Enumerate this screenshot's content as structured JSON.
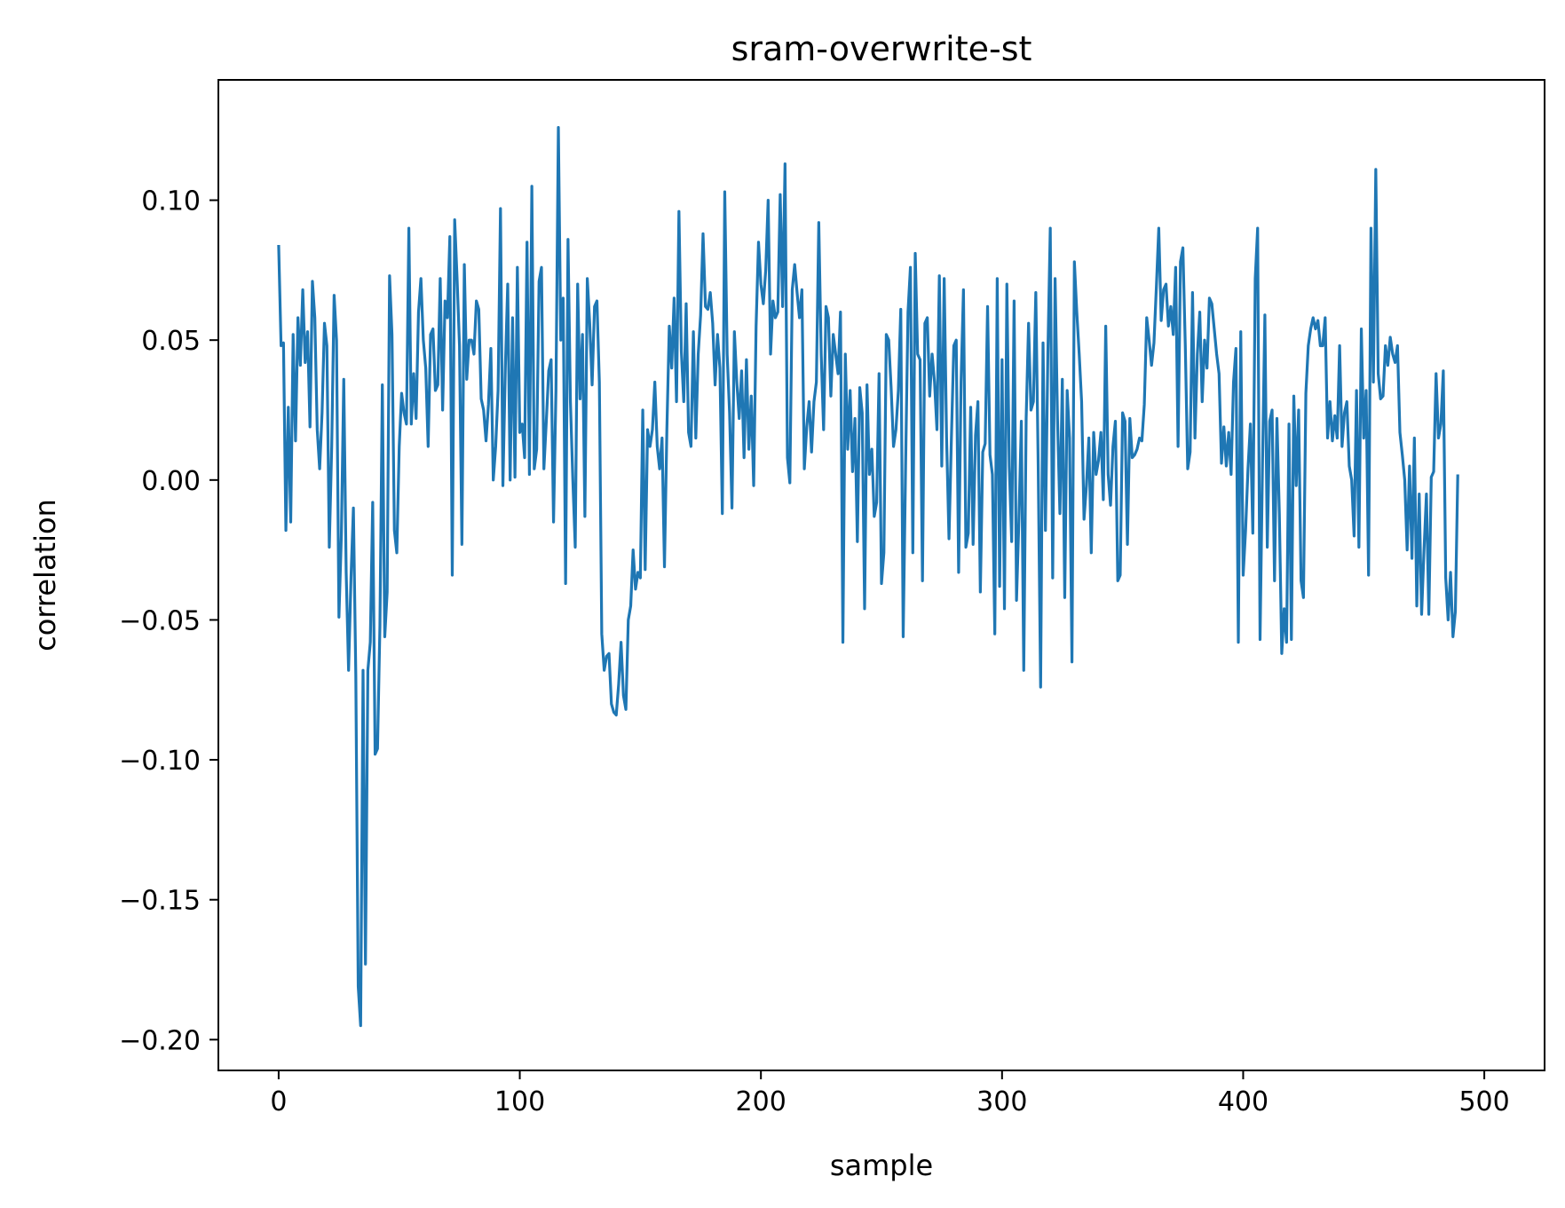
{
  "chart_data": {
    "type": "line",
    "title": "sram-overwrite-st",
    "xlabel": "sample",
    "ylabel": "correlation",
    "xlim": [
      -25,
      525
    ],
    "ylim": [
      -0.211,
      0.143
    ],
    "x_ticks": [
      0,
      100,
      200,
      300,
      400,
      500
    ],
    "x_tick_labels": [
      "0",
      "100",
      "200",
      "300",
      "400",
      "500"
    ],
    "y_ticks": [
      0.1,
      0.05,
      0.0,
      -0.05,
      -0.1,
      -0.15,
      -0.2
    ],
    "y_tick_labels": [
      "0.10",
      "0.05",
      "0.00",
      "−0.05",
      "−0.10",
      "−0.15",
      "−0.20"
    ],
    "grid": false,
    "legend": "none",
    "colors": {
      "line": "#1f77b4",
      "axes": "#000000",
      "background": "#ffffff"
    },
    "series": [
      {
        "x_start": 0,
        "x_step": 1,
        "values": [
          0.084,
          0.048,
          0.049,
          -0.018,
          0.026,
          -0.015,
          0.052,
          0.014,
          0.058,
          0.041,
          0.068,
          0.042,
          0.053,
          0.019,
          0.071,
          0.058,
          0.018,
          0.004,
          0.024,
          0.056,
          0.048,
          -0.024,
          0.012,
          0.066,
          0.05,
          -0.049,
          -0.02,
          0.036,
          -0.033,
          -0.068,
          -0.035,
          -0.01,
          -0.07,
          -0.181,
          -0.195,
          -0.068,
          -0.173,
          -0.068,
          -0.058,
          -0.008,
          -0.098,
          -0.096,
          -0.052,
          0.034,
          -0.056,
          -0.04,
          0.073,
          0.052,
          -0.018,
          -0.026,
          0.012,
          0.031,
          0.024,
          0.02,
          0.09,
          0.02,
          0.038,
          0.022,
          0.06,
          0.072,
          0.05,
          0.04,
          0.012,
          0.052,
          0.054,
          0.032,
          0.034,
          0.072,
          0.025,
          0.064,
          0.058,
          0.087,
          -0.034,
          0.093,
          0.072,
          0.048,
          -0.023,
          0.077,
          0.036,
          0.05,
          0.05,
          0.045,
          0.064,
          0.061,
          0.029,
          0.025,
          0.014,
          0.027,
          0.047,
          0.0,
          0.012,
          0.032,
          0.097,
          -0.002,
          0.04,
          0.07,
          0.0,
          0.058,
          0.001,
          0.076,
          0.017,
          0.02,
          0.008,
          0.085,
          0.002,
          0.105,
          0.004,
          0.011,
          0.071,
          0.076,
          0.004,
          0.021,
          0.039,
          0.043,
          -0.015,
          0.032,
          0.126,
          0.05,
          0.065,
          -0.037,
          0.086,
          0.028,
          0.0,
          -0.024,
          0.07,
          0.029,
          0.052,
          -0.013,
          0.072,
          0.056,
          0.034,
          0.062,
          0.064,
          0.035,
          -0.055,
          -0.068,
          -0.063,
          -0.062,
          -0.08,
          -0.083,
          -0.084,
          -0.073,
          -0.058,
          -0.077,
          -0.082,
          -0.05,
          -0.045,
          -0.025,
          -0.039,
          -0.033,
          -0.035,
          0.025,
          -0.032,
          0.018,
          0.012,
          0.018,
          0.035,
          0.012,
          0.004,
          0.015,
          -0.031,
          0.018,
          0.055,
          0.04,
          0.065,
          0.028,
          0.096,
          0.046,
          0.028,
          0.063,
          0.017,
          0.012,
          0.053,
          0.015,
          0.045,
          0.059,
          0.088,
          0.062,
          0.061,
          0.067,
          0.056,
          0.034,
          0.052,
          0.04,
          -0.012,
          0.103,
          0.045,
          0.024,
          -0.01,
          0.053,
          0.035,
          0.022,
          0.039,
          0.008,
          0.043,
          0.011,
          0.03,
          -0.002,
          0.055,
          0.085,
          0.07,
          0.063,
          0.075,
          0.1,
          0.045,
          0.064,
          0.058,
          0.06,
          0.102,
          0.062,
          0.113,
          0.008,
          -0.001,
          0.068,
          0.077,
          0.067,
          0.058,
          0.068,
          0.004,
          0.019,
          0.028,
          0.01,
          0.028,
          0.035,
          0.092,
          0.045,
          0.018,
          0.062,
          0.058,
          0.03,
          0.052,
          0.045,
          0.038,
          0.06,
          -0.058,
          0.045,
          0.011,
          0.032,
          0.003,
          0.022,
          -0.022,
          0.033,
          0.024,
          -0.046,
          0.034,
          0.002,
          0.011,
          -0.013,
          -0.008,
          0.038,
          -0.037,
          -0.026,
          0.052,
          0.05,
          0.033,
          0.012,
          0.018,
          0.032,
          0.061,
          -0.056,
          0.005,
          0.06,
          0.076,
          -0.026,
          0.081,
          0.045,
          0.043,
          -0.036,
          0.056,
          0.058,
          0.03,
          0.045,
          0.035,
          0.018,
          0.073,
          0.005,
          0.072,
          0.015,
          -0.021,
          0.015,
          0.048,
          0.05,
          -0.033,
          0.035,
          0.068,
          -0.024,
          -0.019,
          0.026,
          -0.023,
          0.016,
          0.028,
          -0.04,
          0.01,
          0.013,
          0.062,
          0.009,
          0.002,
          -0.055,
          0.072,
          -0.038,
          0.043,
          -0.046,
          0.07,
          0.005,
          -0.022,
          0.064,
          -0.043,
          -0.014,
          0.021,
          -0.068,
          0.022,
          0.056,
          0.025,
          0.028,
          0.067,
          0.005,
          -0.074,
          0.049,
          -0.018,
          0.045,
          0.09,
          -0.035,
          0.072,
          0.022,
          -0.012,
          0.036,
          -0.042,
          0.032,
          0.015,
          -0.065,
          0.078,
          0.06,
          0.045,
          0.028,
          -0.014,
          -0.002,
          0.015,
          -0.026,
          0.017,
          0.002,
          0.007,
          0.017,
          -0.007,
          0.055,
          0.002,
          -0.009,
          0.012,
          0.021,
          -0.036,
          -0.034,
          0.024,
          0.021,
          -0.023,
          0.022,
          0.008,
          0.009,
          0.011,
          0.015,
          0.014,
          0.027,
          0.058,
          0.05,
          0.041,
          0.049,
          0.069,
          0.09,
          0.057,
          0.068,
          0.07,
          0.055,
          0.062,
          0.052,
          0.076,
          0.012,
          0.078,
          0.083,
          0.048,
          0.004,
          0.01,
          0.067,
          0.015,
          0.045,
          0.06,
          0.028,
          0.05,
          0.04,
          0.065,
          0.063,
          0.054,
          0.045,
          0.038,
          0.006,
          0.019,
          0.005,
          0.017,
          0.002,
          0.035,
          0.047,
          -0.058,
          0.053,
          -0.034,
          -0.018,
          0.004,
          0.02,
          -0.019,
          0.072,
          0.09,
          -0.057,
          0.005,
          0.059,
          -0.024,
          0.021,
          0.025,
          -0.036,
          0.022,
          -0.012,
          -0.062,
          -0.046,
          -0.058,
          0.02,
          -0.057,
          0.03,
          -0.002,
          0.025,
          -0.036,
          -0.042,
          0.031,
          0.048,
          0.054,
          0.058,
          0.054,
          0.057,
          0.048,
          0.048,
          0.058,
          0.015,
          0.028,
          0.014,
          0.023,
          0.015,
          0.048,
          0.012,
          0.024,
          0.028,
          0.005,
          0.0,
          -0.02,
          0.032,
          -0.024,
          0.054,
          0.015,
          0.032,
          -0.034,
          0.09,
          0.035,
          0.111,
          0.038,
          0.029,
          0.03,
          0.048,
          0.041,
          0.051,
          0.045,
          0.042,
          0.048,
          0.017,
          0.009,
          0.0,
          -0.025,
          0.005,
          -0.028,
          0.015,
          -0.045,
          -0.005,
          -0.048,
          -0.025,
          -0.005,
          -0.048,
          0.001,
          0.003,
          0.038,
          0.015,
          0.02,
          0.039,
          -0.035,
          -0.05,
          -0.033,
          -0.056,
          -0.047,
          0.002
        ]
      }
    ]
  }
}
